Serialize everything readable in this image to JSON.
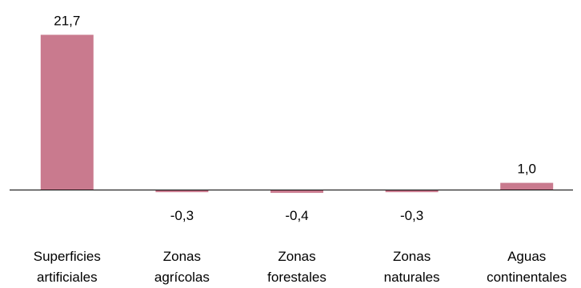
{
  "chart_data": {
    "type": "bar",
    "categories": [
      [
        "Superficies",
        "artificiales"
      ],
      [
        "Zonas",
        "agrícolas"
      ],
      [
        "Zonas",
        "forestales"
      ],
      [
        "Zonas",
        "naturales"
      ],
      [
        "Aguas",
        "continentales"
      ]
    ],
    "values": [
      21.7,
      -0.3,
      -0.4,
      -0.3,
      1.0
    ],
    "value_labels": [
      "21,7",
      "-0,3",
      "-0,4",
      "-0,3",
      "1,0"
    ],
    "bar_color": "#c97a8e",
    "axis_color": "#000000",
    "grid": false,
    "legend": "none"
  }
}
